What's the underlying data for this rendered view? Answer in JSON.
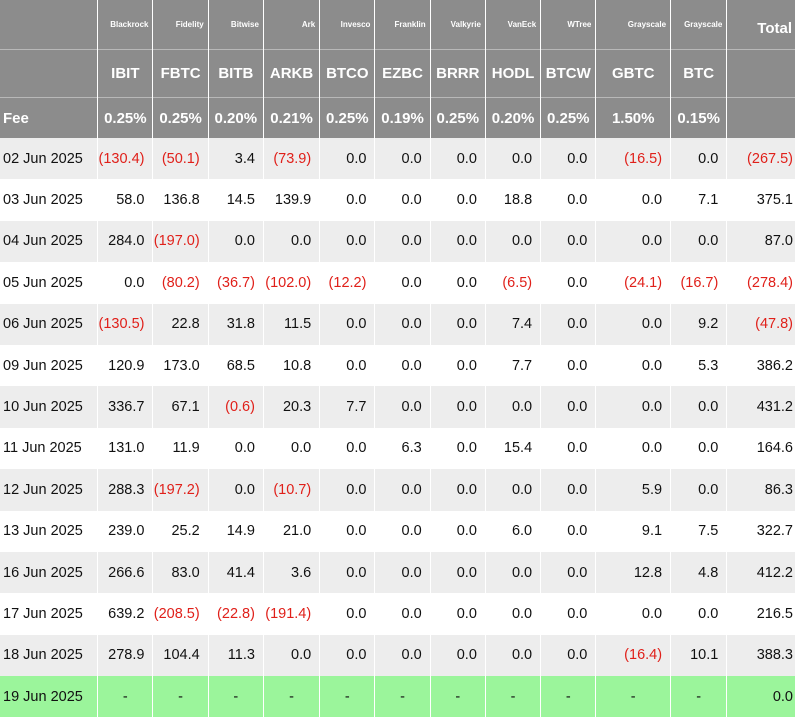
{
  "headers": {
    "issuers": [
      "Blackrock",
      "Fidelity",
      "Bitwise",
      "Ark",
      "Invesco",
      "Franklin",
      "Valkyrie",
      "VanEck",
      "WTree",
      "Grayscale",
      "Grayscale"
    ],
    "total_label": "Total",
    "tickers": [
      "IBIT",
      "FBTC",
      "BITB",
      "ARKB",
      "BTCO",
      "EZBC",
      "BRRR",
      "HODL",
      "BTCW",
      "GBTC",
      "BTC"
    ],
    "fee_label": "Fee",
    "fees": [
      "0.25%",
      "0.25%",
      "0.20%",
      "0.21%",
      "0.25%",
      "0.19%",
      "0.25%",
      "0.20%",
      "0.25%",
      "1.50%",
      "0.15%"
    ]
  },
  "rows": [
    {
      "date": "02 Jun 2025",
      "values": [
        "(130.4)",
        "(50.1)",
        "3.4",
        "(73.9)",
        "0.0",
        "0.0",
        "0.0",
        "0.0",
        "0.0",
        "(16.5)",
        "0.0"
      ],
      "total": "(267.5)"
    },
    {
      "date": "03 Jun 2025",
      "values": [
        "58.0",
        "136.8",
        "14.5",
        "139.9",
        "0.0",
        "0.0",
        "0.0",
        "18.8",
        "0.0",
        "0.0",
        "7.1"
      ],
      "total": "375.1"
    },
    {
      "date": "04 Jun 2025",
      "values": [
        "284.0",
        "(197.0)",
        "0.0",
        "0.0",
        "0.0",
        "0.0",
        "0.0",
        "0.0",
        "0.0",
        "0.0",
        "0.0"
      ],
      "total": "87.0"
    },
    {
      "date": "05 Jun 2025",
      "values": [
        "0.0",
        "(80.2)",
        "(36.7)",
        "(102.0)",
        "(12.2)",
        "0.0",
        "0.0",
        "(6.5)",
        "0.0",
        "(24.1)",
        "(16.7)"
      ],
      "total": "(278.4)"
    },
    {
      "date": "06 Jun 2025",
      "values": [
        "(130.5)",
        "22.8",
        "31.8",
        "11.5",
        "0.0",
        "0.0",
        "0.0",
        "7.4",
        "0.0",
        "0.0",
        "9.2"
      ],
      "total": "(47.8)"
    },
    {
      "date": "09 Jun 2025",
      "values": [
        "120.9",
        "173.0",
        "68.5",
        "10.8",
        "0.0",
        "0.0",
        "0.0",
        "7.7",
        "0.0",
        "0.0",
        "5.3"
      ],
      "total": "386.2"
    },
    {
      "date": "10 Jun 2025",
      "values": [
        "336.7",
        "67.1",
        "(0.6)",
        "20.3",
        "7.7",
        "0.0",
        "0.0",
        "0.0",
        "0.0",
        "0.0",
        "0.0"
      ],
      "total": "431.2"
    },
    {
      "date": "11 Jun 2025",
      "values": [
        "131.0",
        "11.9",
        "0.0",
        "0.0",
        "0.0",
        "6.3",
        "0.0",
        "15.4",
        "0.0",
        "0.0",
        "0.0"
      ],
      "total": "164.6"
    },
    {
      "date": "12 Jun 2025",
      "values": [
        "288.3",
        "(197.2)",
        "0.0",
        "(10.7)",
        "0.0",
        "0.0",
        "0.0",
        "0.0",
        "0.0",
        "5.9",
        "0.0"
      ],
      "total": "86.3"
    },
    {
      "date": "13 Jun 2025",
      "values": [
        "239.0",
        "25.2",
        "14.9",
        "21.0",
        "0.0",
        "0.0",
        "0.0",
        "6.0",
        "0.0",
        "9.1",
        "7.5"
      ],
      "total": "322.7"
    },
    {
      "date": "16 Jun 2025",
      "values": [
        "266.6",
        "83.0",
        "41.4",
        "3.6",
        "0.0",
        "0.0",
        "0.0",
        "0.0",
        "0.0",
        "12.8",
        "4.8"
      ],
      "total": "412.2"
    },
    {
      "date": "17 Jun 2025",
      "values": [
        "639.2",
        "(208.5)",
        "(22.8)",
        "(191.4)",
        "0.0",
        "0.0",
        "0.0",
        "0.0",
        "0.0",
        "0.0",
        "0.0"
      ],
      "total": "216.5"
    },
    {
      "date": "18 Jun 2025",
      "values": [
        "278.9",
        "104.4",
        "11.3",
        "0.0",
        "0.0",
        "0.0",
        "0.0",
        "0.0",
        "0.0",
        "(16.4)",
        "10.1"
      ],
      "total": "388.3"
    },
    {
      "date": "19 Jun 2025",
      "values": [
        "-",
        "-",
        "-",
        "-",
        "-",
        "-",
        "-",
        "-",
        "-",
        "-",
        "-"
      ],
      "total": "0.0",
      "pending": true
    }
  ],
  "colors": {
    "header_bg": "#8c8c8c",
    "negative": "#e0201a",
    "pending_row": "#9bf59b",
    "stripe": "#ededed"
  }
}
